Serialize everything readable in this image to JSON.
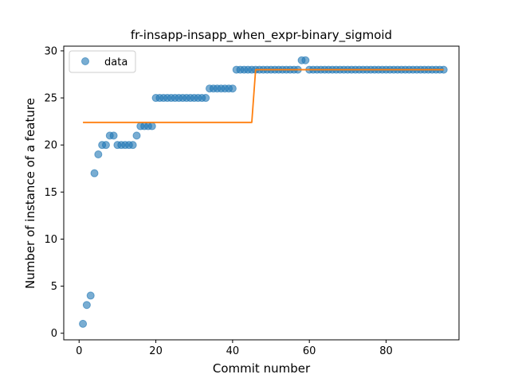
{
  "chart_data": {
    "type": "scatter",
    "title": "fr-insapp-insapp_when_expr-binary_sigmoid",
    "xlabel": "Commit number",
    "ylabel": "Number of instance of a feature",
    "xlim": [
      -4,
      99
    ],
    "ylim": [
      -0.7,
      30.5
    ],
    "xticks": [
      0,
      20,
      40,
      60,
      80
    ],
    "yticks": [
      0,
      5,
      10,
      15,
      20,
      25,
      30
    ],
    "grid": false,
    "legend_position": "top-left",
    "series": [
      {
        "name": "data",
        "kind": "scatter",
        "color": "#1f77b4",
        "x": [
          1,
          2,
          3,
          4,
          5,
          6,
          7,
          8,
          9,
          10,
          11,
          12,
          13,
          14,
          15,
          16,
          17,
          18,
          19,
          20,
          21,
          22,
          23,
          24,
          25,
          26,
          27,
          28,
          29,
          30,
          31,
          32,
          33,
          34,
          35,
          36,
          37,
          38,
          39,
          40,
          41,
          42,
          43,
          44,
          45,
          46,
          47,
          48,
          49,
          50,
          51,
          52,
          53,
          54,
          55,
          56,
          57,
          58,
          59,
          60,
          61,
          62,
          63,
          64,
          65,
          66,
          67,
          68,
          69,
          70,
          71,
          72,
          73,
          74,
          75,
          76,
          77,
          78,
          79,
          80,
          81,
          82,
          83,
          84,
          85,
          86,
          87,
          88,
          89,
          90,
          91,
          92,
          93,
          94,
          95
        ],
        "y": [
          1,
          3,
          4,
          17,
          19,
          20,
          20,
          21,
          21,
          20,
          20,
          20,
          20,
          20,
          21,
          22,
          22,
          22,
          22,
          25,
          25,
          25,
          25,
          25,
          25,
          25,
          25,
          25,
          25,
          25,
          25,
          25,
          25,
          26,
          26,
          26,
          26,
          26,
          26,
          26,
          28,
          28,
          28,
          28,
          28,
          28,
          28,
          28,
          28,
          28,
          28,
          28,
          28,
          28,
          28,
          28,
          28,
          29,
          29,
          28,
          28,
          28,
          28,
          28,
          28,
          28,
          28,
          28,
          28,
          28,
          28,
          28,
          28,
          28,
          28,
          28,
          28,
          28,
          28,
          28,
          28,
          28,
          28,
          28,
          28,
          28,
          28,
          28,
          28,
          28,
          28,
          28,
          28,
          28,
          28
        ]
      },
      {
        "kind": "line",
        "color": "#ff7f0e",
        "x": [
          1,
          45,
          46,
          95
        ],
        "y": [
          22.4,
          22.4,
          28,
          28
        ]
      }
    ]
  }
}
